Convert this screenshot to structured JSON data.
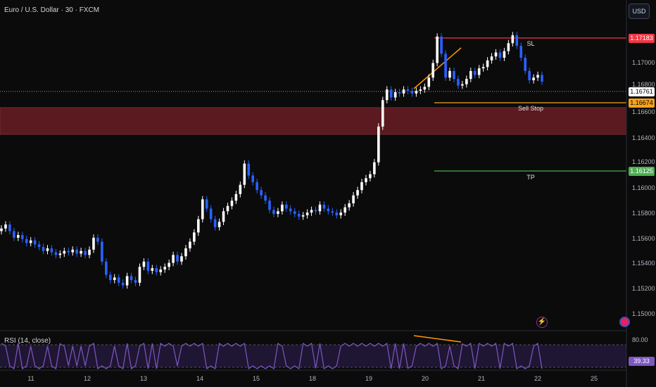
{
  "header": {
    "title": "Euro / U.S. Dollar · 30 · FXCM",
    "currency_button": "USD"
  },
  "price_axis": {
    "labels": [
      "1.17000",
      "1.16800",
      "1.16600",
      "1.16400",
      "1.16200",
      "1.16000",
      "1.15800",
      "1.15600",
      "1.15400",
      "1.15200",
      "1.15000"
    ]
  },
  "price_tags": {
    "sl": {
      "value": "1.17183",
      "color": "#f23645"
    },
    "current": {
      "value": "1.16761",
      "color": "#ffffff"
    },
    "entry": {
      "value": "1.16674",
      "color": "#f7a21b"
    },
    "tp": {
      "value": "1.16125",
      "color": "#4caf50"
    }
  },
  "annotations": {
    "sl_label": "SL",
    "entry_label": "Sell Stop",
    "tp_label": "TP",
    "zone_color": "#5b1a1f",
    "divergence_color": "#ff9800"
  },
  "time_axis": {
    "labels": [
      "11",
      "12",
      "13",
      "14",
      "15",
      "18",
      "19",
      "20",
      "21",
      "22",
      "25"
    ]
  },
  "rsi": {
    "title": "RSI (14, close)",
    "upper_level": "80.00",
    "value": "39.33",
    "line_color": "#7e57c2"
  },
  "icons": {
    "lightning": "lightning-icon",
    "logo": "broker-logo-icon"
  },
  "chart_data": {
    "type": "candlestick",
    "title": "Euro / U.S. Dollar · 30 · FXCM",
    "ylim": [
      1.149,
      1.1725
    ],
    "x": [
      "11",
      "12",
      "13",
      "14",
      "15",
      "18",
      "19",
      "20",
      "21",
      "22",
      "25"
    ],
    "close_series": [
      [
        1.1563,
        1.1566,
        1.1561,
        1.1556,
        1.1558,
        1.1555,
        1.1552,
        1.1554,
        1.1551,
        1.1549,
        1.1546,
        1.1548,
        1.1545,
        1.1543,
        1.1544,
        1.1546,
        1.1545,
        1.1547,
        1.1544,
        1.1546,
        1.1543,
        1.1547,
        1.1556,
        1.1553,
        1.1538,
        1.1528,
        1.1524,
        1.1526,
        1.1522,
        1.152,
        1.1527,
        1.1524,
        1.1522,
        1.1534,
        1.1538,
        1.1531,
        1.1533,
        1.153,
        1.1532,
        1.1534,
        1.1537,
        1.1543,
        1.1538,
        1.1542,
        1.1548,
        1.1553,
        1.156,
        1.157,
        1.1585,
        1.1578,
        1.157,
        1.1564,
        1.1568,
        1.1576,
        1.158,
        1.1584,
        1.1589,
        1.1596,
        1.1612,
        1.1603,
        1.1598,
        1.1592,
        1.1588,
        1.1584,
        1.1577,
        1.1574,
        1.1576,
        1.1581,
        1.1578,
        1.1576,
        1.1574,
        1.1572,
        1.1573,
        1.1575,
        1.1577,
        1.1576,
        1.1581,
        1.1578,
        1.1576,
        1.1575,
        1.1573,
        1.1575,
        1.1579,
        1.1582,
        1.1588,
        1.1592,
        1.1598,
        1.1601,
        1.1604,
        1.1613,
        1.164,
        1.166,
        1.1668,
        1.1662,
        1.1666,
        1.1665,
        1.1668,
        1.1667,
        1.1665,
        1.1667,
        1.1668,
        1.167,
        1.1677,
        1.1688,
        1.1708,
        1.1695,
        1.1677,
        1.1682,
        1.1676,
        1.1671,
        1.1672,
        1.1676,
        1.1682,
        1.1679,
        1.1684,
        1.1685,
        1.169,
        1.1693,
        1.1696,
        1.1692,
        1.1697,
        1.1703,
        1.1709,
        1.1701,
        1.1692,
        1.1682,
        1.1675,
        1.1677,
        1.1679,
        1.1674
      ]
    ],
    "markers": {
      "sl": 1.17183,
      "entry_sell_stop": 1.16674,
      "tp": 1.16125,
      "current_price": 1.16761,
      "resistance_zone": [
        1.1642,
        1.1662
      ]
    },
    "rsi": {
      "label": "RSI (14, close)",
      "upper_band": 80,
      "last_value": 39.33
    }
  }
}
